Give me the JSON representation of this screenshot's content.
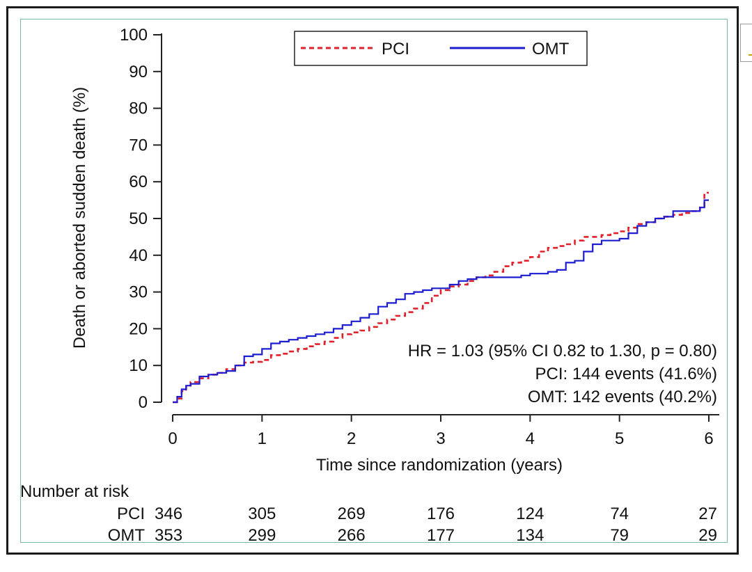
{
  "chart_data": {
    "type": "line",
    "title": "",
    "xlabel": "Time since randomization (years)",
    "ylabel": "Death or aborted sudden death (%)",
    "xlim": [
      0,
      6
    ],
    "ylim": [
      0,
      100
    ],
    "x_ticks": [
      0,
      1,
      2,
      3,
      4,
      5,
      6
    ],
    "y_ticks": [
      0,
      10,
      20,
      30,
      40,
      50,
      60,
      70,
      80,
      90,
      100
    ],
    "grid": false,
    "legend_placement": "top-center",
    "series": [
      {
        "name": "PCI",
        "color": "#e0202a",
        "style": "dashed",
        "x": [
          0,
          0.05,
          0.1,
          0.15,
          0.2,
          0.3,
          0.4,
          0.5,
          0.6,
          0.7,
          0.8,
          0.9,
          1.0,
          1.1,
          1.2,
          1.3,
          1.4,
          1.5,
          1.6,
          1.7,
          1.8,
          1.9,
          2.0,
          2.1,
          2.2,
          2.3,
          2.4,
          2.5,
          2.6,
          2.7,
          2.8,
          2.9,
          3.0,
          3.1,
          3.2,
          3.3,
          3.4,
          3.5,
          3.6,
          3.7,
          3.8,
          3.9,
          4.0,
          4.1,
          4.2,
          4.3,
          4.4,
          4.5,
          4.6,
          4.7,
          4.8,
          4.9,
          5.0,
          5.1,
          5.2,
          5.3,
          5.4,
          5.5,
          5.6,
          5.7,
          5.8,
          5.9,
          5.95,
          6.0
        ],
        "y": [
          0,
          1.0,
          3.0,
          4.5,
          5.5,
          6.5,
          7.5,
          8.0,
          9.0,
          10.0,
          10.8,
          11.0,
          11.5,
          12.8,
          13.2,
          13.8,
          14.5,
          15.2,
          15.8,
          16.5,
          17.5,
          18.5,
          19.0,
          19.5,
          20.5,
          21.5,
          22.5,
          23.5,
          24.5,
          25.5,
          27.0,
          29.0,
          30.5,
          31.5,
          32.0,
          33.0,
          34.0,
          34.5,
          35.5,
          37.0,
          38.0,
          38.5,
          39.5,
          41.0,
          42.0,
          42.5,
          43.0,
          44.0,
          45.0,
          45.0,
          45.5,
          46.0,
          46.5,
          47.5,
          48.5,
          49.0,
          50.0,
          50.5,
          51.0,
          51.5,
          52.0,
          53.0,
          57.0,
          57.0
        ]
      },
      {
        "name": "OMT",
        "color": "#1c1cd0",
        "style": "solid",
        "x": [
          0,
          0.05,
          0.1,
          0.15,
          0.2,
          0.3,
          0.4,
          0.5,
          0.6,
          0.7,
          0.8,
          0.9,
          1.0,
          1.1,
          1.2,
          1.3,
          1.4,
          1.5,
          1.6,
          1.7,
          1.8,
          1.9,
          2.0,
          2.1,
          2.2,
          2.3,
          2.4,
          2.5,
          2.6,
          2.7,
          2.8,
          2.9,
          3.0,
          3.1,
          3.2,
          3.3,
          3.4,
          3.5,
          3.6,
          3.7,
          3.8,
          3.9,
          4.0,
          4.1,
          4.2,
          4.3,
          4.4,
          4.5,
          4.6,
          4.7,
          4.8,
          4.9,
          5.0,
          5.1,
          5.2,
          5.3,
          5.4,
          5.5,
          5.6,
          5.7,
          5.8,
          5.9,
          5.95,
          6.0
        ],
        "y": [
          0,
          1.5,
          3.5,
          4.5,
          5.0,
          7.0,
          7.5,
          8.0,
          8.5,
          10.0,
          12.5,
          13.0,
          14.5,
          16.0,
          16.5,
          17.0,
          17.5,
          18.0,
          18.5,
          19.0,
          20.0,
          21.0,
          22.0,
          23.0,
          24.0,
          26.0,
          27.0,
          28.0,
          29.5,
          30.0,
          30.5,
          31.0,
          31.0,
          32.0,
          33.0,
          33.5,
          34.0,
          34.0,
          34.0,
          34.0,
          34.0,
          34.5,
          35.0,
          35.0,
          35.5,
          36.0,
          38.0,
          38.5,
          41.0,
          43.0,
          44.0,
          44.0,
          44.5,
          46.0,
          48.0,
          49.0,
          50.0,
          50.5,
          52.0,
          52.0,
          52.0,
          53.0,
          55.0,
          55.0
        ]
      }
    ],
    "annotations": [
      "HR = 1.03 (95% CI 0.82 to 1.30, p = 0.80)",
      "PCI: 144 events (41.6%)",
      "OMT: 142 events (40.2%)"
    ],
    "risk_table": {
      "header": "Number at risk",
      "rows": [
        {
          "label": "PCI",
          "values": [
            "346",
            "305",
            "269",
            "176",
            "124",
            "74",
            "27"
          ]
        },
        {
          "label": "OMT",
          "values": [
            "353",
            "299",
            "266",
            "177",
            "134",
            "79",
            "29"
          ]
        }
      ]
    }
  }
}
